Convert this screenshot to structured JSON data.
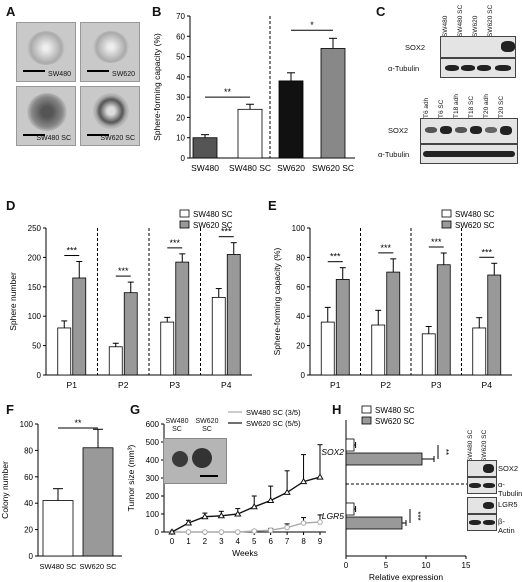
{
  "panels": {
    "A": {
      "label": "A",
      "images": [
        "SW480",
        "SW620",
        "SW480 SC",
        "SW620 SC"
      ]
    },
    "B": {
      "label": "B",
      "chart_data": {
        "type": "bar",
        "categories": [
          "SW480",
          "SW480 SC",
          "SW620",
          "SW620 SC"
        ],
        "values": [
          10,
          24,
          38,
          54
        ],
        "errors": [
          1.5,
          2.5,
          4,
          5
        ],
        "colors": [
          "#555555",
          "#ffffff",
          "#111111",
          "#888888"
        ],
        "ylabel": "Sphere-forming capacity (%)",
        "ylim": [
          0,
          70
        ],
        "yticks": [
          0,
          10,
          20,
          30,
          40,
          50,
          60,
          70
        ],
        "significance": [
          "**",
          "*"
        ]
      }
    },
    "C": {
      "label": "C",
      "top_lanes": [
        "SW480",
        "SW480 SC",
        "SW620",
        "SW620 SC"
      ],
      "top_rows": [
        "SOX2",
        "α-Tubulin"
      ],
      "bottom_lanes": [
        "T6 adh",
        "T6 SC",
        "T18 adh",
        "T18 SC",
        "T20 adh",
        "T20 SC"
      ],
      "bottom_rows": [
        "SOX2",
        "α-Tubulin"
      ]
    },
    "D": {
      "label": "D",
      "chart_data": {
        "type": "bar",
        "categories": [
          "P1",
          "P2",
          "P3",
          "P4"
        ],
        "series": [
          {
            "name": "SW480 SC",
            "values": [
              80,
              48,
              90,
              132
            ],
            "errors": [
              12,
              6,
              8,
              15
            ],
            "color": "#ffffff"
          },
          {
            "name": "SW620 SC",
            "values": [
              165,
              140,
              192,
              205
            ],
            "errors": [
              28,
              18,
              14,
              20
            ],
            "color": "#999999"
          }
        ],
        "ylabel": "Sphere number",
        "ylim": [
          0,
          250
        ],
        "yticks": [
          0,
          50,
          100,
          150,
          200,
          250
        ],
        "significance": [
          "***",
          "***",
          "***",
          "***"
        ]
      }
    },
    "E": {
      "label": "E",
      "chart_data": {
        "type": "bar",
        "categories": [
          "P1",
          "P2",
          "P3",
          "P4"
        ],
        "series": [
          {
            "name": "SW480 SC",
            "values": [
              36,
              34,
              28,
              32
            ],
            "errors": [
              10,
              10,
              5,
              7
            ],
            "color": "#ffffff"
          },
          {
            "name": "SW620 SC",
            "values": [
              65,
              70,
              75,
              68
            ],
            "errors": [
              8,
              9,
              8,
              8
            ],
            "color": "#999999"
          }
        ],
        "ylabel": "Sphere-forming capacity (%)",
        "ylim": [
          0,
          100
        ],
        "yticks": [
          0,
          20,
          40,
          60,
          80,
          100
        ],
        "significance": [
          "***",
          "***",
          "***",
          "***"
        ]
      }
    },
    "F": {
      "label": "F",
      "chart_data": {
        "type": "bar",
        "categories": [
          "SW480 SC",
          "SW620 SC"
        ],
        "values": [
          42,
          82
        ],
        "errors": [
          9,
          14
        ],
        "colors": [
          "#ffffff",
          "#999999"
        ],
        "ylabel": "Colony number",
        "ylim": [
          0,
          100
        ],
        "yticks": [
          0,
          20,
          40,
          60,
          80,
          100
        ],
        "significance": [
          "**"
        ]
      }
    },
    "G": {
      "label": "G",
      "inset_labels": [
        "SW480 SC",
        "SW620 SC"
      ],
      "chart_data": {
        "type": "line",
        "x": [
          0,
          1,
          2,
          3,
          4,
          5,
          6,
          7,
          8,
          9
        ],
        "series": [
          {
            "name": "SW480 SC (3/5)",
            "values": [
              0,
              0,
              0,
              0,
              0,
              5,
              10,
              25,
              50,
              55
            ],
            "errors": [
              0,
              0,
              0,
              0,
              0,
              6,
              10,
              20,
              30,
              40
            ],
            "color": "#aaaaaa"
          },
          {
            "name": "SW620 SC (5/5)",
            "values": [
              0,
              50,
              85,
              90,
              100,
              140,
              175,
              220,
              280,
              305
            ],
            "errors": [
              0,
              15,
              20,
              25,
              30,
              60,
              80,
              120,
              150,
              180
            ],
            "color": "#111111"
          }
        ],
        "xlabel": "Weeks",
        "ylabel": "Tumor size (mm³)",
        "ylim": [
          0,
          600
        ],
        "yticks": [
          0,
          100,
          200,
          300,
          400,
          500,
          600
        ]
      }
    },
    "H": {
      "label": "H",
      "chart_data": {
        "type": "bar",
        "orientation": "horizontal",
        "categories": [
          "SOX2",
          "LGR5"
        ],
        "series": [
          {
            "name": "SW480 SC",
            "values": [
              1,
              1
            ],
            "errors": [
              0.2,
              0.2
            ],
            "color": "#ffffff"
          },
          {
            "name": "SW620 SC",
            "values": [
              9.5,
              7
            ],
            "errors": [
              1.5,
              0.5
            ],
            "color": "#999999"
          }
        ],
        "xlabel": "Relative expression",
        "xlim": [
          0,
          15
        ],
        "xticks": [
          0,
          5,
          10,
          15
        ],
        "significance": [
          "**",
          "***"
        ]
      },
      "blot_lanes": [
        "SW480 SC",
        "SW620 SC"
      ],
      "blot_rows": [
        "SOX2",
        "α-Tubulin",
        "LGR5",
        "β-Actin"
      ]
    }
  }
}
